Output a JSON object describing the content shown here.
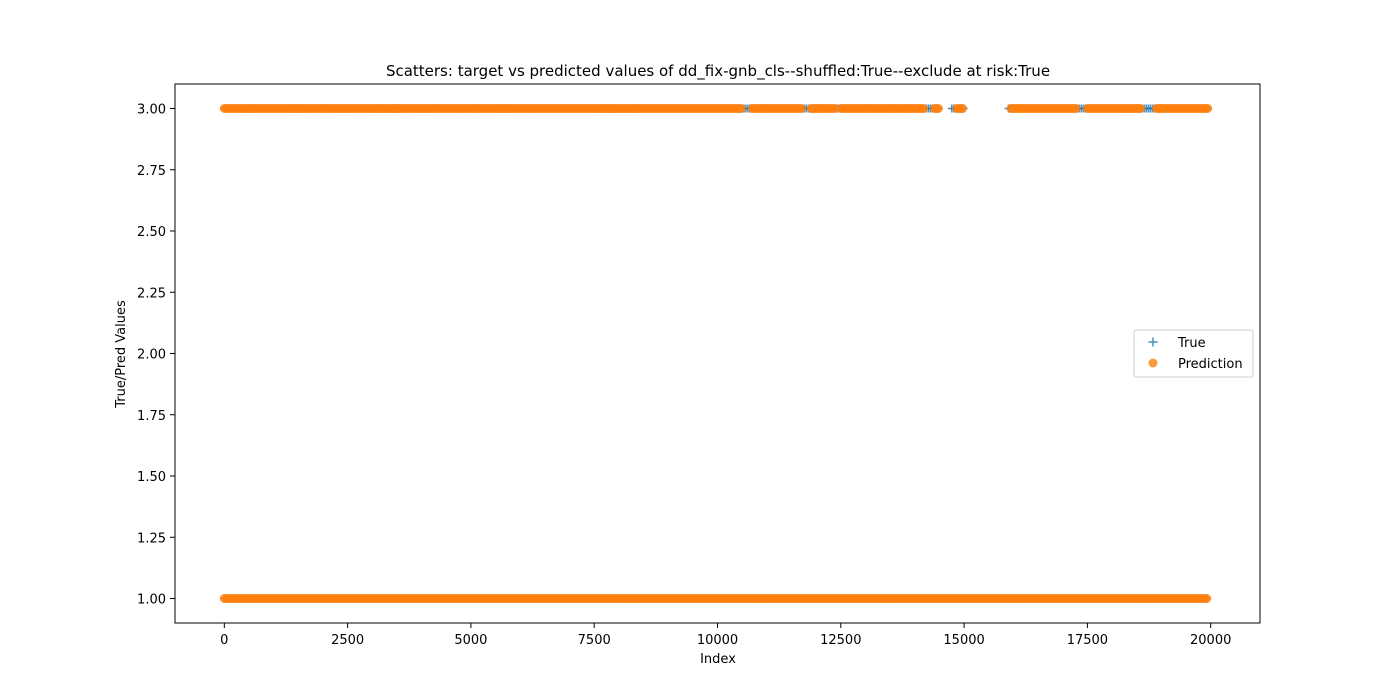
{
  "chart_data": {
    "type": "scatter",
    "title": "Scatters: target vs predicted values of dd_fix-gnb_cls--shuffled:True--exclude at risk:True",
    "xlabel": "Index",
    "ylabel": "True/Pred Values",
    "xlim": [
      -1000,
      21000
    ],
    "ylim": [
      0.9,
      3.1
    ],
    "xticks": [
      0,
      2500,
      5000,
      7500,
      10000,
      12500,
      15000,
      17500,
      20000
    ],
    "yticks": [
      1.0,
      1.25,
      1.5,
      1.75,
      2.0,
      2.25,
      2.5,
      2.75,
      3.0
    ],
    "xtick_labels": [
      "0",
      "2500",
      "5000",
      "7500",
      "10000",
      "12500",
      "15000",
      "17500",
      "20000"
    ],
    "ytick_labels": [
      "1.00",
      "1.25",
      "1.50",
      "1.75",
      "2.00",
      "2.25",
      "2.50",
      "2.75",
      "3.00"
    ],
    "grid": false,
    "legend_position": "center-right",
    "series": [
      {
        "name": "True",
        "marker": "+",
        "color": "#1f77b4",
        "levels": [
          {
            "y": 1.0,
            "x_ranges": [
              [
                0,
                19950
              ]
            ]
          },
          {
            "y": 3.0,
            "x_ranges": [
              [
                0,
                14500
              ],
              [
                14750,
                15000
              ],
              [
                15900,
                19950
              ]
            ]
          }
        ]
      },
      {
        "name": "Prediction",
        "marker": "o",
        "color": "#ff7f0e",
        "levels": [
          {
            "y": 1.0,
            "x_ranges": [
              [
                0,
                19950
              ]
            ]
          },
          {
            "y": 3.0,
            "x_ranges": [
              [
                0,
                1500
              ],
              [
                1500,
                3500
              ],
              [
                3500,
                5600
              ],
              [
                5600,
                7800
              ],
              [
                7800,
                10500
              ],
              [
                10700,
                11700
              ],
              [
                11900,
                12400
              ],
              [
                12500,
                14200
              ],
              [
                14400,
                14500
              ],
              [
                14850,
                15000
              ],
              [
                15950,
                17300
              ],
              [
                17500,
                18600
              ],
              [
                18900,
                19950
              ]
            ]
          }
        ]
      }
    ]
  }
}
